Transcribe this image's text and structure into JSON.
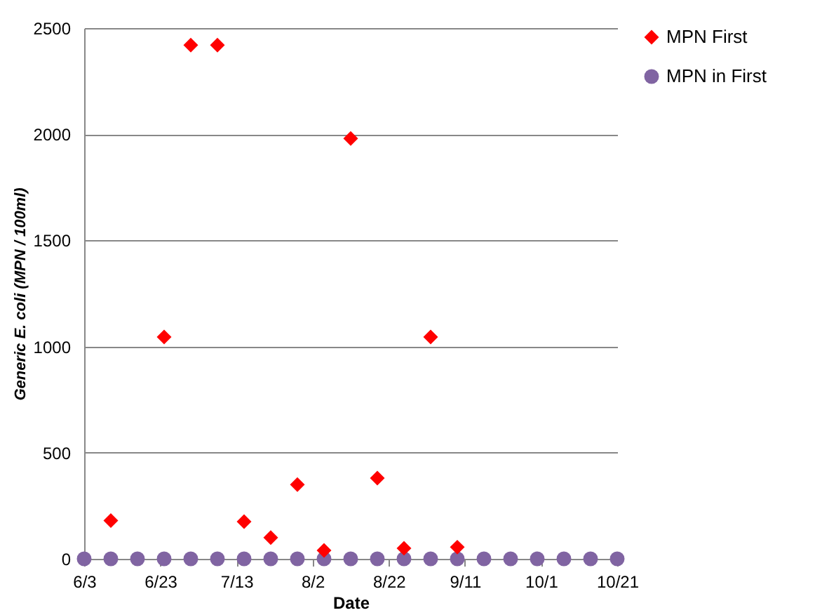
{
  "chart_data": {
    "type": "scatter",
    "xlabel": "Date",
    "ylabel": "Generic E. coli (MPN / 100ml)",
    "x": [
      "--06-03",
      "--06-10",
      "--06-17",
      "--06-24",
      "--07-01",
      "--07-08",
      "--07-15",
      "--07-22",
      "--07-29",
      "--08-05",
      "--08-12",
      "--08-19",
      "--08-26",
      "--09-02",
      "--09-09",
      "--09-16",
      "--09-23",
      "--09-30",
      "--10-07",
      "--10-14",
      "--10-21"
    ],
    "series": [
      {
        "name": "MPN First",
        "color": "#ff0000",
        "marker": "diamond",
        "values": [
          null,
          180,
          null,
          1045,
          2420,
          2420,
          175,
          100,
          350,
          40,
          1980,
          380,
          50,
          1045,
          55,
          null,
          null,
          null,
          null,
          null,
          null
        ]
      },
      {
        "name": "MPN in First",
        "color": "#8064a2",
        "marker": "circle",
        "values": [
          0,
          0,
          0,
          0,
          0,
          0,
          0,
          0,
          0,
          0,
          0,
          0,
          0,
          0,
          0,
          0,
          0,
          0,
          0,
          0,
          0
        ]
      }
    ],
    "xlim": [
      "--06-03",
      "--10-21"
    ],
    "xticks": [
      {
        "value": "--06-03",
        "label": "6/3"
      },
      {
        "value": "--06-23",
        "label": "6/23"
      },
      {
        "value": "--07-13",
        "label": "7/13"
      },
      {
        "value": "--08-02",
        "label": "8/2"
      },
      {
        "value": "--08-22",
        "label": "8/22"
      },
      {
        "value": "--09-11",
        "label": "9/11"
      },
      {
        "value": "--10-01",
        "label": "10/1"
      },
      {
        "value": "--10-21",
        "label": "10/21"
      }
    ],
    "ylim": [
      0,
      2500
    ],
    "yticks": [
      0,
      500,
      1000,
      1500,
      2000,
      2500
    ],
    "grid": "y",
    "legend": "right"
  }
}
